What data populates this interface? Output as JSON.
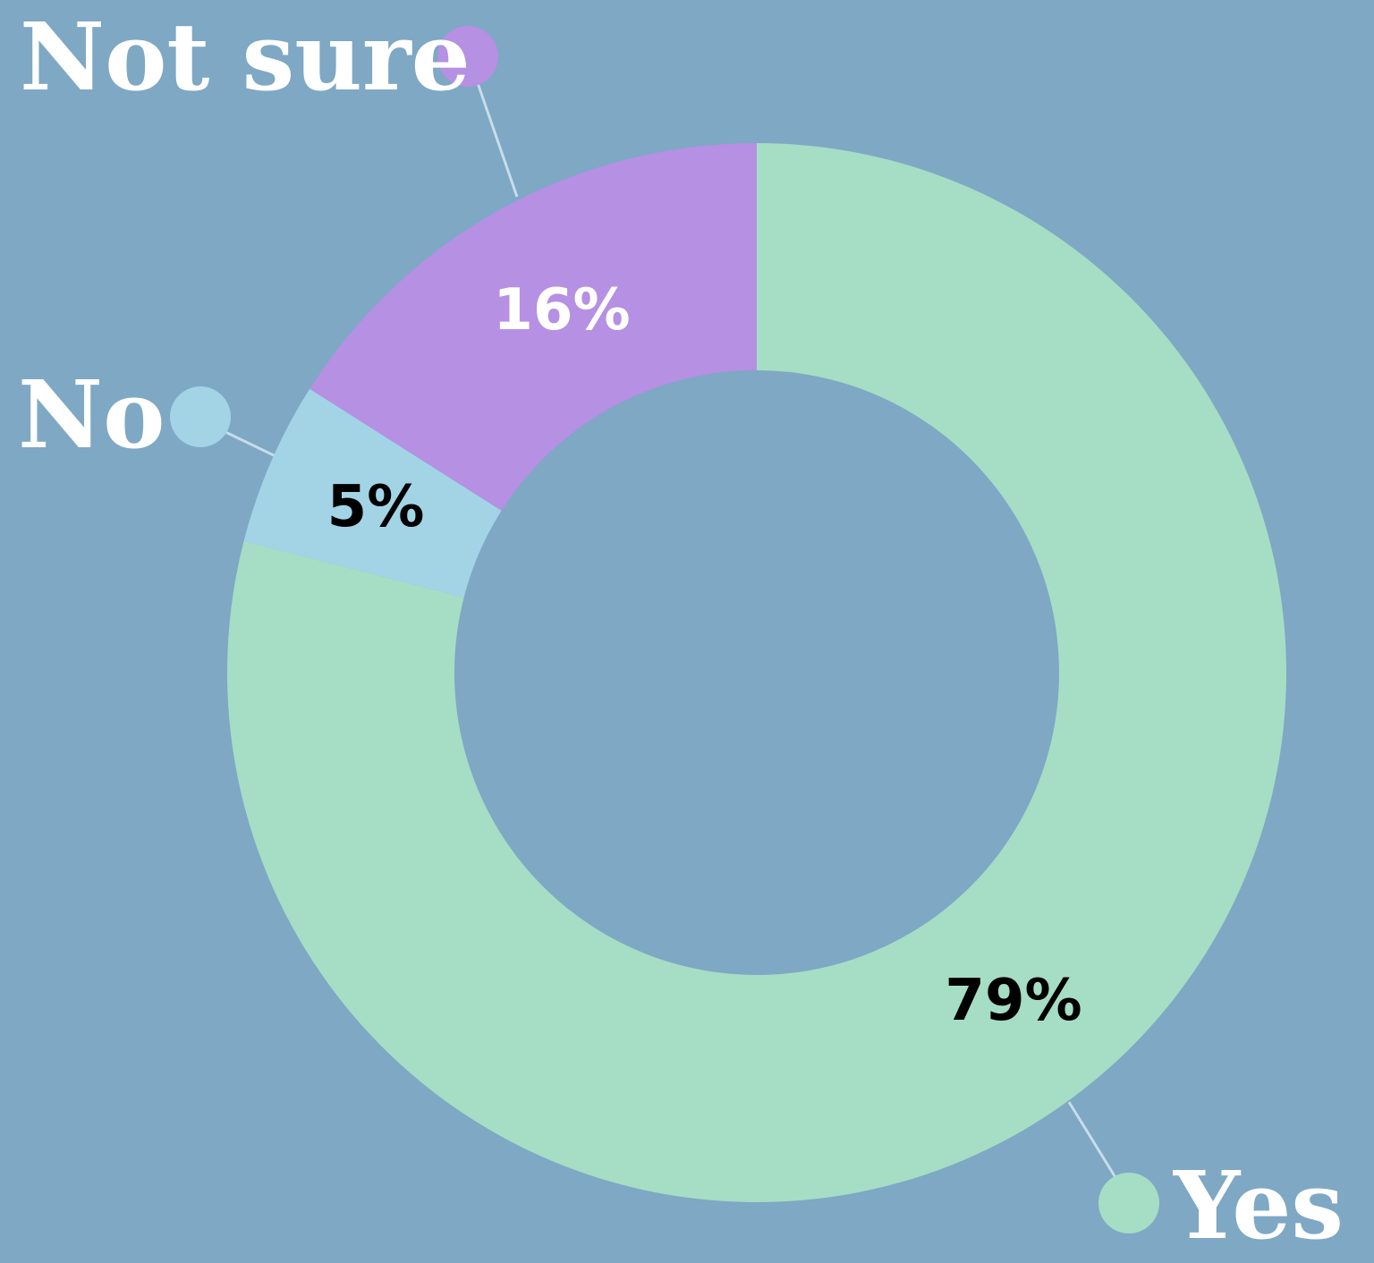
{
  "chart_data": {
    "type": "pie",
    "subtype": "donut",
    "slices": [
      {
        "label": "Yes",
        "value": 79,
        "value_label": "79%",
        "color": "#a6ddc5",
        "value_label_color": "#000000"
      },
      {
        "label": "No",
        "value": 5,
        "value_label": "5%",
        "color": "#a2d4e6",
        "value_label_color": "#000000"
      },
      {
        "label": "Not sure",
        "value": 16,
        "value_label": "16%",
        "color": "#b590e3",
        "value_label_color": "#ffffff"
      }
    ],
    "start_angle_deg": 0,
    "direction": "clockwise",
    "background_color": "#7ea8c4",
    "leader_line_color": "#c8dcea"
  }
}
